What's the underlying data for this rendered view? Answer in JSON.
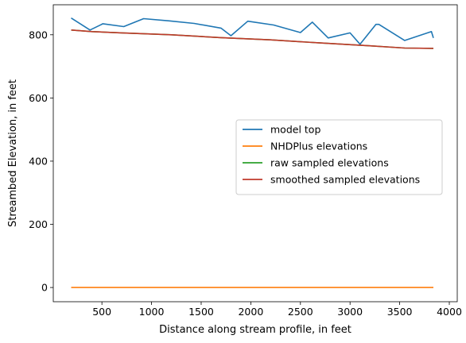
{
  "chart_data": {
    "type": "line",
    "xlabel": "Distance along stream profile, in feet",
    "ylabel": "Streambed Elevation, in feet",
    "xlim": [
      10,
      4080
    ],
    "ylim": [
      -45,
      895
    ],
    "xticks": [
      500,
      1000,
      1500,
      2000,
      2500,
      3000,
      3500,
      4000
    ],
    "yticks": [
      0,
      200,
      400,
      600,
      800
    ],
    "grid": false,
    "legend_position": "center-right",
    "series": [
      {
        "name": "model top",
        "color": "#1f77b4",
        "x": [
          190,
          380,
          510,
          720,
          920,
          1180,
          1430,
          1700,
          1800,
          1970,
          2230,
          2500,
          2620,
          2780,
          3000,
          3100,
          3260,
          3290,
          3550,
          3820,
          3840
        ],
        "y": [
          853,
          815,
          835,
          826,
          851,
          844,
          836,
          821,
          797,
          843,
          831,
          807,
          840,
          790,
          806,
          770,
          833,
          833,
          782,
          810,
          790
        ]
      },
      {
        "name": "NHDPlus elevations",
        "color": "#ff7f0e",
        "x": [
          190,
          3840
        ],
        "y": [
          0,
          0
        ]
      },
      {
        "name": "raw sampled elevations",
        "color": "#2ca02c",
        "x": [
          190,
          400,
          700,
          1200,
          1700,
          2200,
          2700,
          3200,
          3550,
          3840
        ],
        "y": [
          815,
          810,
          806,
          800,
          791,
          784,
          774,
          765,
          758,
          757
        ]
      },
      {
        "name": "smoothed sampled elevations",
        "color": "#c0392b",
        "x": [
          190,
          400,
          700,
          1200,
          1700,
          2200,
          2700,
          3200,
          3550,
          3840
        ],
        "y": [
          815,
          810,
          806,
          800,
          791,
          784,
          774,
          765,
          758,
          757
        ]
      }
    ]
  }
}
